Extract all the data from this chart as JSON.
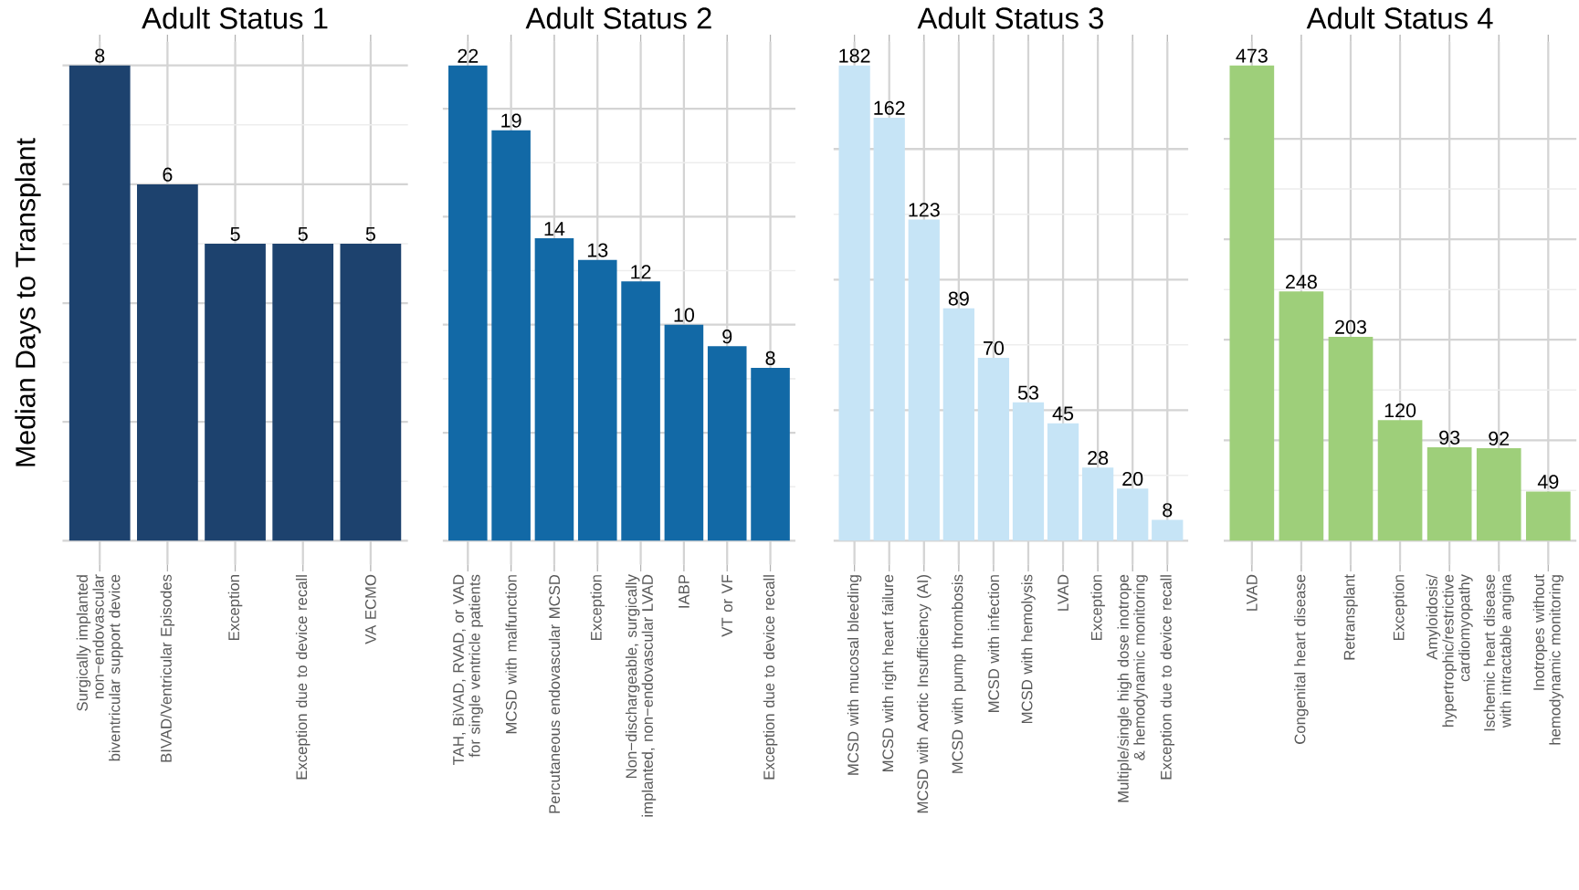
{
  "chart_data": [
    {
      "type": "bar",
      "title": "Adult Status 1",
      "ylabel": "Median Days to Transplant",
      "categories": [
        "Surgically implanted non−endovascular biventricular support device",
        "BIVAD/Ventricular Episodes",
        "Exception",
        "Exception due to device recall",
        "VA ECMO"
      ],
      "values": [
        8,
        6,
        5,
        5,
        5
      ],
      "color": "#1d426e",
      "ylim": [
        -0.4,
        8.4
      ],
      "yticks": [
        {
          "value": 0,
          "label": null
        },
        {
          "value": 2,
          "label": null
        },
        {
          "value": 4,
          "label": null
        },
        {
          "value": 6,
          "label": null
        },
        {
          "value": 8,
          "label": null
        }
      ],
      "grid": true,
      "data_labels": true,
      "tick_labels": "x"
    },
    {
      "type": "bar",
      "title": "Adult Status 2",
      "categories": [
        "TAH, BiVAD, RVAD, or VAD for single ventricle patients",
        "MCSD with malfunction",
        "Percutaneous endovascular MCSD",
        "Exception",
        "Non−dischargeable, surgically implanted, non−endovascular LVAD",
        "IABP",
        "VT or VF",
        "Exception due to device recall"
      ],
      "values": [
        22,
        19,
        14,
        13,
        12,
        10,
        9,
        8
      ],
      "color": "#1269a6",
      "ylim": [
        -1.1,
        23.1
      ],
      "yticks": [
        {
          "value": 0,
          "label": null
        },
        {
          "value": 5,
          "label": null
        },
        {
          "value": 10,
          "label": null
        },
        {
          "value": 15,
          "label": null
        },
        {
          "value": 20,
          "label": null
        }
      ],
      "grid": true,
      "data_labels": true,
      "tick_labels": "x"
    },
    {
      "type": "bar",
      "title": "Adult Status 3",
      "categories": [
        "MCSD with mucosal bleeding",
        "MCSD with right heart failure",
        "MCSD with Aortic Insufficiency (AI)",
        "MCSD with pump thrombosis",
        "MCSD with infection",
        "MCSD with hemolysis",
        "LVAD",
        "Exception",
        "Multiple/single high dose inotrope & hemodynamic monitoring",
        "Exception due to device recall"
      ],
      "values": [
        182,
        162,
        123,
        89,
        70,
        53,
        45,
        28,
        20,
        8
      ],
      "color": "#c6e4f6",
      "ylim": [
        -9.1,
        191.1
      ],
      "yticks": [
        {
          "value": 0,
          "label": null
        },
        {
          "value": 50,
          "label": null
        },
        {
          "value": 100,
          "label": null
        },
        {
          "value": 150,
          "label": null
        }
      ],
      "grid": true,
      "data_labels": true,
      "tick_labels": "x"
    },
    {
      "type": "bar",
      "title": "Adult Status 4",
      "categories": [
        "LVAD",
        "Congenital heart disease",
        "Retransplant",
        "Exception",
        "Amyloidosis/ hypertrophic/restrictive cardiomyopathy",
        "Ischemic heart disease with intractable angina",
        "Inotropes without hemodynamic monitoring"
      ],
      "values": [
        473,
        248,
        203,
        120,
        93,
        92,
        49
      ],
      "color": "#9ecf7a",
      "ylim": [
        -23.65,
        496.65
      ],
      "yticks": [
        {
          "value": 0,
          "label": null
        },
        {
          "value": 100,
          "label": null
        },
        {
          "value": 200,
          "label": null
        },
        {
          "value": 300,
          "label": null
        },
        {
          "value": 400,
          "label": null
        }
      ],
      "grid": true,
      "data_labels": true,
      "tick_labels": "x"
    }
  ]
}
